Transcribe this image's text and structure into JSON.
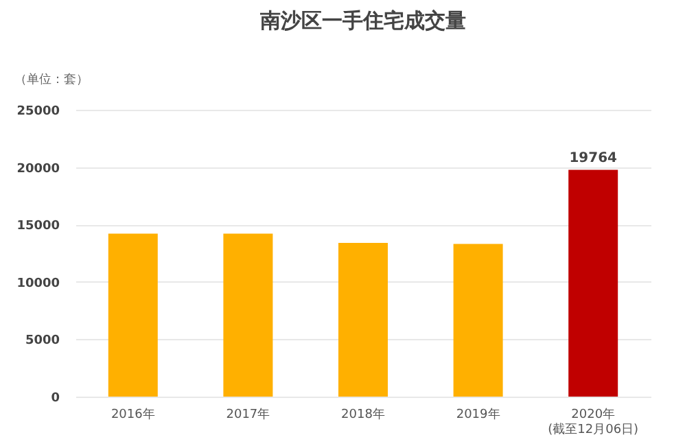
{
  "chart_data": {
    "type": "bar",
    "title": "南沙区一手住宅成交量",
    "ylabel": "（单位：套）",
    "categories": [
      "2016年",
      "2017年",
      "2018年",
      "2019年",
      "2020年\n(截至12月06日)"
    ],
    "values": [
      14200,
      14200,
      13400,
      13300,
      19764
    ],
    "colors": [
      "#ffb000",
      "#ffb000",
      "#ffb000",
      "#ffb000",
      "#c00000"
    ],
    "value_labels": [
      null,
      null,
      null,
      null,
      "19764"
    ],
    "ylim": [
      0,
      25000
    ],
    "yticks": [
      0,
      5000,
      10000,
      15000,
      20000,
      25000
    ],
    "grid": "y"
  }
}
